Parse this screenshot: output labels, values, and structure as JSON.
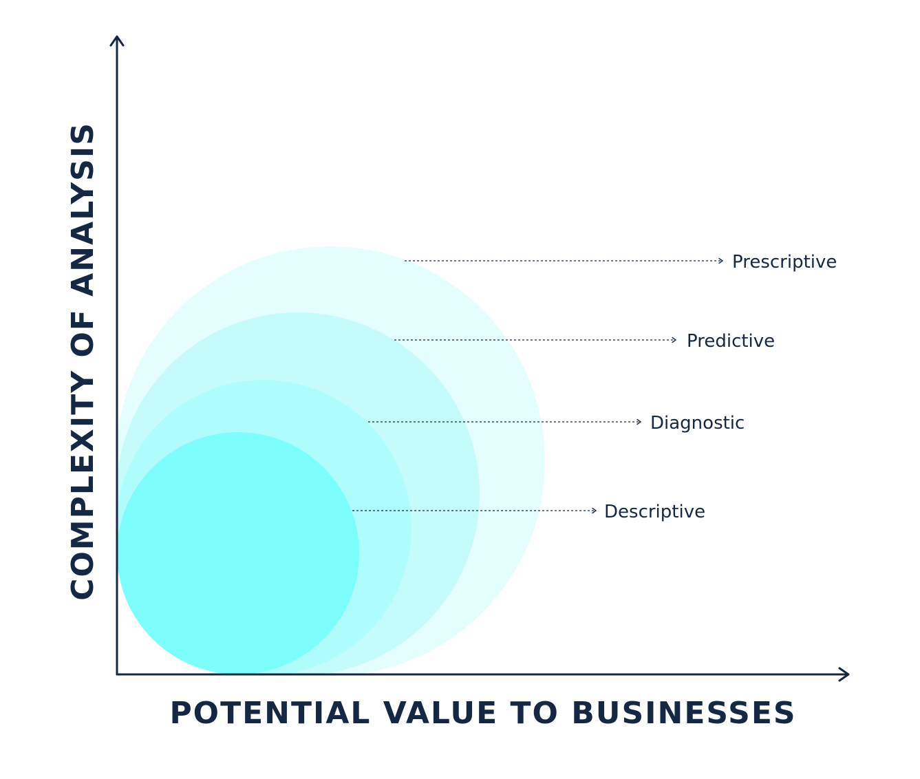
{
  "axes": {
    "y_title": "COMPLEXITY OF ANALYSIS",
    "x_title": "POTENTIAL VALUE TO BUSINESSES"
  },
  "tiers": [
    {
      "label": "Prescriptive",
      "color": "#E4FDFD"
    },
    {
      "label": "Predictive",
      "color": "#C6FBFC"
    },
    {
      "label": "Diagnostic",
      "color": "#AEFDFC"
    },
    {
      "label": "Descriptive",
      "color": "#7CFFFC"
    }
  ],
  "colors": {
    "ink": "#152743"
  }
}
